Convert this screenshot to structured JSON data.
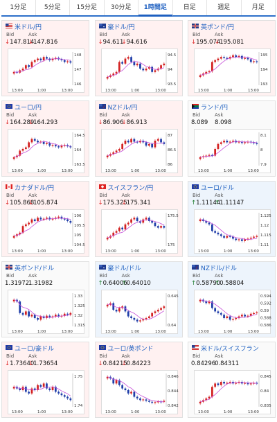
{
  "tabs": [
    "1分足",
    "5分足",
    "15分足",
    "30分足",
    "1時間足",
    "日足",
    "週足",
    "月足"
  ],
  "active_tab": 4,
  "labels": {
    "bid": "Bid",
    "ask": "Ask"
  },
  "colors": {
    "up_arrow": "#1a7a2a",
    "down_arrow": "#d22",
    "candle_up": "#d32222",
    "candle_down": "#1f3da8",
    "ma": "#c54ed8"
  },
  "cards": [
    {
      "pair": "米ドル/円",
      "flag": "us",
      "dir": "down",
      "bid": "147.814",
      "ask": "147.816",
      "yticks": [
        "148",
        "147",
        "146"
      ],
      "xticks": [
        "13:00",
        "1:00",
        "13:00"
      ],
      "shape": [
        0.6,
        0.62,
        0.55,
        0.5,
        0.4,
        0.45,
        0.3,
        0.25,
        0.2,
        0.25,
        0.15,
        0.2,
        0.25,
        0.2,
        0.18,
        0.22,
        0.25,
        0.3,
        0.28,
        0.32
      ]
    },
    {
      "pair": "豪ドル/円",
      "flag": "au",
      "dir": "down",
      "bid": "94.611",
      "ask": "94.616",
      "yticks": [
        "94.5",
        "94",
        "93.5"
      ],
      "xticks": [
        "13:00",
        "1:00",
        "13:00"
      ],
      "shape": [
        0.75,
        0.7,
        0.65,
        0.6,
        0.3,
        0.35,
        0.2,
        0.15,
        0.3,
        0.4,
        0.35,
        0.5,
        0.55,
        0.5,
        0.45,
        0.6,
        0.55,
        0.5,
        0.4,
        0.35
      ]
    },
    {
      "pair": "英ポンド/円",
      "flag": "uk",
      "dir": "down",
      "bid": "195.074",
      "ask": "195.081",
      "yticks": [
        "195",
        "194",
        "193"
      ],
      "xticks": [
        "13:00",
        "1:00",
        "13:00"
      ],
      "shape": [
        0.7,
        0.65,
        0.6,
        0.58,
        0.3,
        0.25,
        0.2,
        0.15,
        0.18,
        0.2,
        0.15,
        0.1,
        0.15,
        0.12,
        0.2,
        0.18,
        0.22,
        0.3,
        0.28,
        0.3
      ]
    },
    {
      "pair": "ユーロ/円",
      "flag": "eu",
      "dir": "down",
      "bid": "164.289",
      "ask": "164.293",
      "yticks": [
        "164.5",
        "164",
        "163.5"
      ],
      "xticks": [
        "13:00",
        "1:00",
        "13:00"
      ],
      "shape": [
        0.75,
        0.7,
        0.55,
        0.5,
        0.45,
        0.3,
        0.2,
        0.25,
        0.3,
        0.28,
        0.35,
        0.32,
        0.4,
        0.38,
        0.42,
        0.45,
        0.4,
        0.38,
        0.42,
        0.45
      ]
    },
    {
      "pair": "NZドル/円",
      "flag": "nz",
      "dir": "down",
      "bid": "86.906",
      "ask": "86.913",
      "yticks": [
        "87",
        "86.5",
        "86"
      ],
      "xticks": [
        "13:00",
        "1:00",
        "13:00"
      ],
      "shape": [
        0.7,
        0.65,
        0.6,
        0.55,
        0.5,
        0.35,
        0.25,
        0.3,
        0.2,
        0.28,
        0.3,
        0.25,
        0.3,
        0.4,
        0.35,
        0.45,
        0.25,
        0.2,
        0.3,
        0.35
      ]
    },
    {
      "pair": "ランド/円",
      "flag": "za",
      "dir": "flat",
      "bid": "8.089",
      "ask": "8.098",
      "yticks": [
        "8.1",
        "8",
        "7.9"
      ],
      "xticks": [
        "13:00",
        "1:00",
        "13:00"
      ],
      "shape": [
        0.75,
        0.72,
        0.7,
        0.68,
        0.7,
        0.5,
        0.35,
        0.3,
        0.25,
        0.3,
        0.28,
        0.25,
        0.3,
        0.28,
        0.32,
        0.3,
        0.28,
        0.3,
        0.32,
        0.35
      ]
    },
    {
      "pair": "カナダドル/円",
      "flag": "ca",
      "dir": "down",
      "bid": "105.868",
      "ask": "105.874",
      "yticks": [
        "106",
        "105.5",
        "105",
        "104.5"
      ],
      "xticks": [
        "13:00",
        "1:00",
        "13:00"
      ],
      "shape": [
        0.7,
        0.65,
        0.6,
        0.4,
        0.35,
        0.3,
        0.2,
        0.25,
        0.15,
        0.2,
        0.18,
        0.15,
        0.2,
        0.18,
        0.15,
        0.12,
        0.18,
        0.2,
        0.25,
        0.3
      ]
    },
    {
      "pair": "スイスフラン/円",
      "flag": "ch",
      "dir": "down",
      "bid": "175.325",
      "ask": "175.341",
      "yticks": [
        "175.5",
        "175"
      ],
      "xticks": [
        "13:00",
        "1:00",
        "13:00"
      ],
      "shape": [
        0.75,
        0.7,
        0.6,
        0.55,
        0.45,
        0.5,
        0.35,
        0.3,
        0.2,
        0.15,
        0.25,
        0.3,
        0.2,
        0.15,
        0.25,
        0.3,
        0.4,
        0.45,
        0.4,
        0.45
      ]
    },
    {
      "pair": "ユーロ/ドル",
      "flag": "eu",
      "dir": "up",
      "bid": "1.11144",
      "ask": "1.11147",
      "yticks": [
        "1.125",
        "1.12",
        "1.115",
        "1.11"
      ],
      "xticks": [
        "13:00",
        "1:00",
        "13:00"
      ],
      "shape": [
        0.2,
        0.25,
        0.3,
        0.35,
        0.55,
        0.6,
        0.65,
        0.7,
        0.75,
        0.7,
        0.72,
        0.78,
        0.82,
        0.8,
        0.85,
        0.8,
        0.78,
        0.75,
        0.72,
        0.7
      ]
    },
    {
      "pair": "英ポンド/ドル",
      "flag": "uk",
      "dir": "flat",
      "bid": "1.31972",
      "ask": "1.31982",
      "yticks": [
        "1.33",
        "1.325",
        "1.32",
        "1.315"
      ],
      "xticks": [
        "13:00",
        "1:00",
        "13:00"
      ],
      "shape": [
        0.2,
        0.25,
        0.6,
        0.65,
        0.55,
        0.7,
        0.65,
        0.75,
        0.8,
        0.7,
        0.75,
        0.68,
        0.72,
        0.7,
        0.65,
        0.7,
        0.68,
        0.62,
        0.65,
        0.6
      ]
    },
    {
      "pair": "豪ドル/ドル",
      "flag": "au",
      "dir": "up",
      "bid": "0.64006",
      "ask": "0.64010",
      "yticks": [
        "0.645",
        "0.64"
      ],
      "xticks": [
        "13:00",
        "1:00",
        "13:00"
      ],
      "shape": [
        0.35,
        0.3,
        0.5,
        0.55,
        0.45,
        0.4,
        0.55,
        0.7,
        0.75,
        0.8,
        0.85,
        0.82,
        0.78,
        0.75,
        0.7,
        0.6,
        0.55,
        0.5,
        0.45,
        0.4
      ]
    },
    {
      "pair": "NZドル/ドル",
      "flag": "nz",
      "dir": "up",
      "bid": "0.58790",
      "ask": "0.58804",
      "yticks": [
        "0.594",
        "0.592",
        "0.59",
        "0.588",
        "0.586"
      ],
      "xticks": [
        "13:00",
        "1:00",
        "13:00"
      ],
      "shape": [
        0.2,
        0.25,
        0.3,
        0.25,
        0.45,
        0.55,
        0.6,
        0.65,
        0.75,
        0.7,
        0.8,
        0.78,
        0.75,
        0.7,
        0.65,
        0.7,
        0.68,
        0.62,
        0.6,
        0.58
      ]
    },
    {
      "pair": "ユーロ/豪ドル",
      "flag": "eu",
      "dir": "down",
      "bid": "1.73640",
      "ask": "1.73654",
      "yticks": [
        "1.75",
        "1.74"
      ],
      "xticks": [
        "13:00",
        "1:00",
        "13:00"
      ],
      "shape": [
        0.4,
        0.45,
        0.5,
        0.4,
        0.55,
        0.6,
        0.45,
        0.5,
        0.35,
        0.4,
        0.3,
        0.45,
        0.5,
        0.4,
        0.55,
        0.6,
        0.65,
        0.7,
        0.75,
        0.8
      ]
    },
    {
      "pair": "ユーロ/英ポンド",
      "flag": "eu",
      "dir": "down",
      "bid": "0.84215",
      "ask": "0.84223",
      "yticks": [
        "0.846",
        "0.844",
        "0.842"
      ],
      "xticks": [
        "13:00",
        "1:00",
        "13:00"
      ],
      "shape": [
        0.1,
        0.15,
        0.3,
        0.2,
        0.35,
        0.45,
        0.5,
        0.6,
        0.55,
        0.7,
        0.75,
        0.8,
        0.78,
        0.82,
        0.85,
        0.88,
        0.86,
        0.84,
        0.85,
        0.82
      ]
    },
    {
      "pair": "米ドル/スイスフラン",
      "flag": "us",
      "dir": "flat",
      "bid": "0.84296",
      "ask": "0.84311",
      "yticks": [
        "0.845",
        "0.84",
        "0.835"
      ],
      "xticks": [
        "13:00",
        "1:00",
        "13:00"
      ],
      "shape": [
        0.85,
        0.8,
        0.75,
        0.7,
        0.4,
        0.3,
        0.35,
        0.25,
        0.3,
        0.28,
        0.25,
        0.3,
        0.28,
        0.25,
        0.3,
        0.28,
        0.32,
        0.3,
        0.28,
        0.3
      ]
    }
  ]
}
